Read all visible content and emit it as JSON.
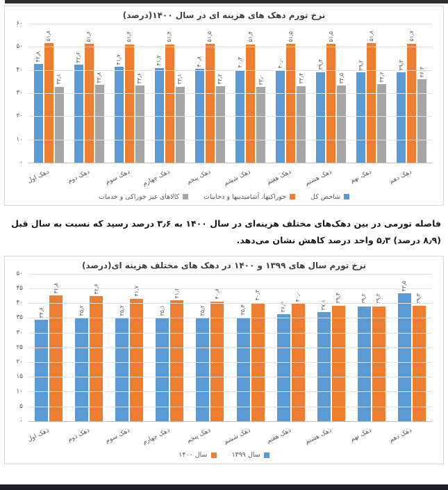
{
  "note_text": "فاصله تورمی در بین دهک‌های مختلف هزینه‌ای در سال ۱۴۰۰ به ۳٫۶ درصد رسید که نسبت به سال قبل (۸٫۹ درصد) ۵٫۳ واحد درصد کاهش نشان می‌دهد.",
  "chart_data": [
    {
      "type": "bar",
      "title": "نرخ تورم دهک های هزینه ای در سال ۱۴۰۰(درصد)",
      "ylim": [
        0,
        60
      ],
      "ystep": 10,
      "grid": true,
      "legend_position": "bottom",
      "categories": [
        "دهک اول",
        "دهک دوم",
        "دهک سوم",
        "دهک چهارم",
        "دهک پنجم",
        "دهک ششم",
        "دهک هفتم",
        "دهک هشتم",
        "دهک نهم",
        "دهک دهم"
      ],
      "series": [
        {
          "name": "شاخص کل",
          "color": "#5B9BD5",
          "values": [
            42.8,
            42.6,
            41.7,
            41.2,
            40.8,
            40.3,
            40.0,
            39.4,
            39.2,
            39.3
          ]
        },
        {
          "name": "خوراکیها، آشامیدنیها و دخانیات",
          "color": "#ED7D31",
          "values": [
            51.8,
            51.6,
            51.4,
            51.4,
            51.5,
            51.4,
            51.5,
            51.5,
            51.8,
            51.7
          ]
        },
        {
          "name": "کالاهای غیر خوراکی و خدمات",
          "color": "#A5A5A5",
          "values": [
            33.1,
            33.8,
            33.6,
            33.1,
            33.2,
            33.0,
            33.4,
            33.5,
            34.2,
            36.3
          ]
        }
      ]
    },
    {
      "type": "bar",
      "title": "نرخ تورم سال های ۱۳۹۹ و ۱۴۰۰ در دهک های مختلف هزینه ای(درصد)",
      "ylim": [
        0,
        50
      ],
      "ystep": 5,
      "grid": true,
      "legend_position": "bottom",
      "categories": [
        "دهک اول",
        "دهک دوم",
        "دهک سوم",
        "دهک چهارم",
        "دهک پنجم",
        "دهک ششم",
        "دهک هفتم",
        "دهک هشتم",
        "دهک نهم",
        "دهک دهم"
      ],
      "series": [
        {
          "name": "سال ۱۳۹۹",
          "color": "#5B9BD5",
          "values": [
            34.6,
            35.2,
            35.2,
            35.1,
            35.2,
            35.4,
            36.4,
            37.1,
            39.2,
            43.5
          ]
        },
        {
          "name": "سال ۱۴۰۰",
          "color": "#ED7D31",
          "values": [
            42.8,
            42.6,
            41.7,
            41.2,
            40.8,
            40.3,
            40.0,
            39.4,
            39.2,
            39.3
          ]
        }
      ]
    }
  ]
}
